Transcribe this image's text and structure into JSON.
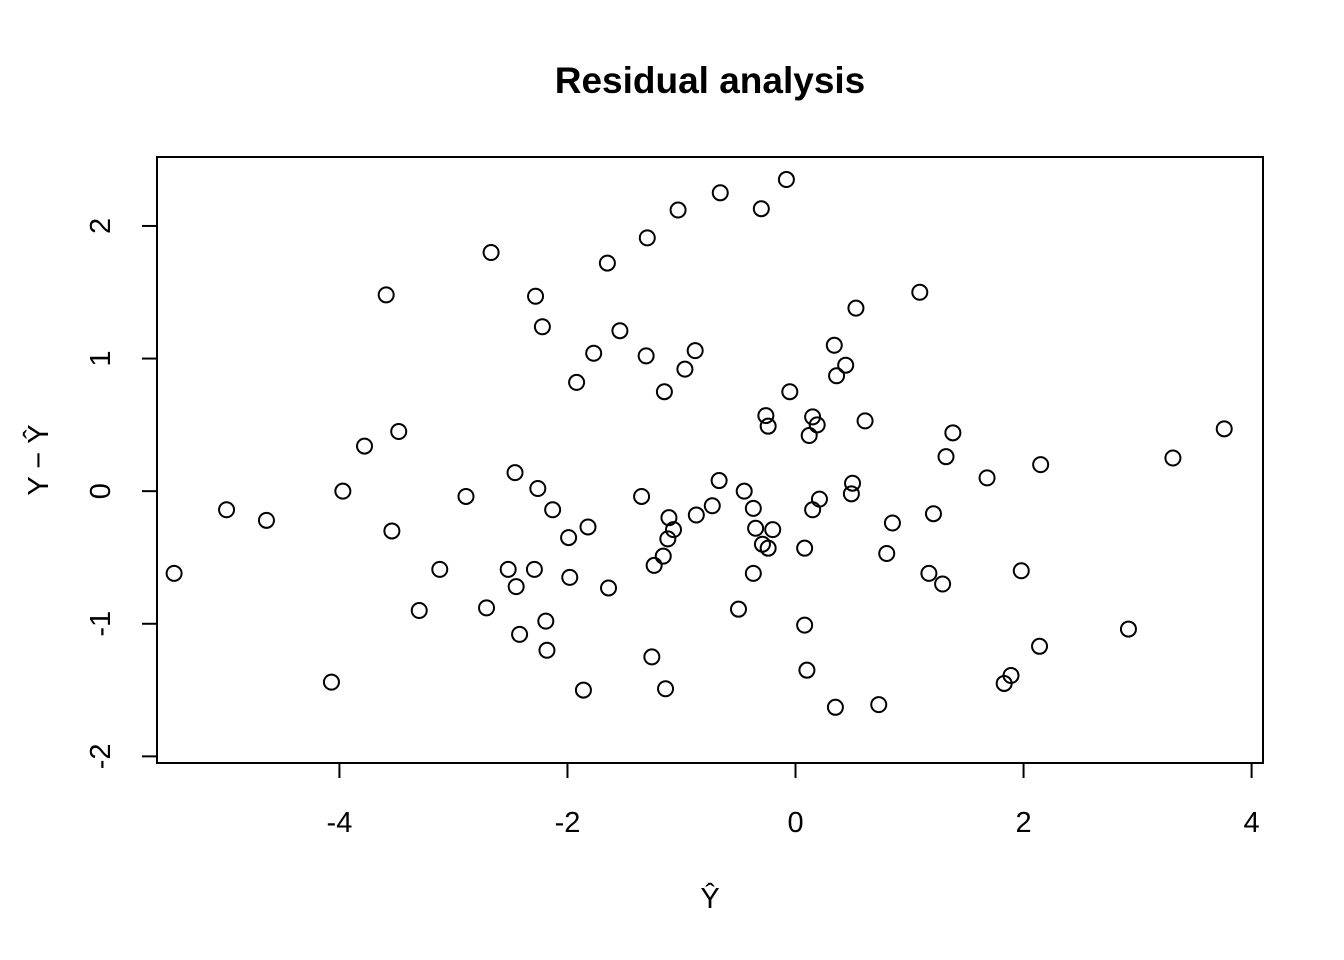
{
  "chart_data": {
    "type": "scatter",
    "title": "Residual analysis",
    "xlabel": "Ŷ",
    "ylabel": "Y − Ŷ",
    "xlim": [
      -5.6,
      4.1
    ],
    "ylim": [
      -2.05,
      2.52
    ],
    "xticks": [
      -4,
      -2,
      0,
      2,
      4
    ],
    "yticks": [
      -2,
      -1,
      0,
      1,
      2
    ],
    "grid": false,
    "point_color": "#000000",
    "points": [
      [
        -5.45,
        -0.62
      ],
      [
        -4.99,
        -0.14
      ],
      [
        -4.64,
        -0.22
      ],
      [
        -4.07,
        -1.44
      ],
      [
        -3.97,
        0.0
      ],
      [
        -3.78,
        0.34
      ],
      [
        -3.59,
        1.48
      ],
      [
        -3.54,
        -0.3
      ],
      [
        -3.48,
        0.45
      ],
      [
        -3.3,
        -0.9
      ],
      [
        -3.12,
        -0.59
      ],
      [
        -2.89,
        -0.04
      ],
      [
        -2.71,
        -0.88
      ],
      [
        -2.67,
        1.8
      ],
      [
        -2.52,
        -0.59
      ],
      [
        -2.46,
        0.14
      ],
      [
        -2.45,
        -0.72
      ],
      [
        -2.42,
        -1.08
      ],
      [
        -2.29,
        -0.59
      ],
      [
        -2.28,
        1.47
      ],
      [
        -2.26,
        0.02
      ],
      [
        -2.22,
        1.24
      ],
      [
        -2.19,
        -0.98
      ],
      [
        -2.18,
        -1.2
      ],
      [
        -2.13,
        -0.14
      ],
      [
        -1.99,
        -0.35
      ],
      [
        -1.98,
        -0.65
      ],
      [
        -1.92,
        0.82
      ],
      [
        -1.86,
        -1.5
      ],
      [
        -1.82,
        -0.27
      ],
      [
        -1.77,
        1.04
      ],
      [
        -1.65,
        1.72
      ],
      [
        -1.64,
        -0.73
      ],
      [
        -1.54,
        1.21
      ],
      [
        -1.35,
        -0.04
      ],
      [
        -1.31,
        1.02
      ],
      [
        -1.3,
        1.91
      ],
      [
        -1.26,
        -1.25
      ],
      [
        -1.24,
        -0.56
      ],
      [
        -1.16,
        -0.49
      ],
      [
        -1.15,
        0.75
      ],
      [
        -1.14,
        -1.49
      ],
      [
        -1.12,
        -0.36
      ],
      [
        -1.11,
        -0.2
      ],
      [
        -1.07,
        -0.29
      ],
      [
        -1.03,
        2.12
      ],
      [
        -0.97,
        0.92
      ],
      [
        -0.88,
        1.06
      ],
      [
        -0.87,
        -0.18
      ],
      [
        -0.73,
        -0.11
      ],
      [
        -0.67,
        0.08
      ],
      [
        -0.66,
        2.25
      ],
      [
        -0.5,
        -0.89
      ],
      [
        -0.45,
        0.0
      ],
      [
        -0.37,
        -0.13
      ],
      [
        -0.37,
        -0.62
      ],
      [
        -0.35,
        -0.28
      ],
      [
        -0.3,
        2.13
      ],
      [
        -0.29,
        -0.4
      ],
      [
        -0.26,
        0.57
      ],
      [
        -0.24,
        -0.43
      ],
      [
        -0.24,
        0.49
      ],
      [
        -0.2,
        -0.29
      ],
      [
        -0.08,
        2.35
      ],
      [
        -0.05,
        0.75
      ],
      [
        0.08,
        -0.43
      ],
      [
        0.08,
        -1.01
      ],
      [
        0.1,
        -1.35
      ],
      [
        0.12,
        0.42
      ],
      [
        0.15,
        0.56
      ],
      [
        0.15,
        -0.14
      ],
      [
        0.19,
        0.5
      ],
      [
        0.21,
        -0.06
      ],
      [
        0.34,
        1.1
      ],
      [
        0.35,
        -1.63
      ],
      [
        0.36,
        0.87
      ],
      [
        0.44,
        0.95
      ],
      [
        0.49,
        -0.02
      ],
      [
        0.5,
        0.06
      ],
      [
        0.53,
        1.38
      ],
      [
        0.61,
        0.53
      ],
      [
        0.73,
        -1.61
      ],
      [
        0.8,
        -0.47
      ],
      [
        0.85,
        -0.24
      ],
      [
        1.09,
        1.5
      ],
      [
        1.17,
        -0.62
      ],
      [
        1.21,
        -0.17
      ],
      [
        1.29,
        -0.7
      ],
      [
        1.32,
        0.26
      ],
      [
        1.38,
        0.44
      ],
      [
        1.68,
        0.1
      ],
      [
        1.83,
        -1.45
      ],
      [
        1.89,
        -1.39
      ],
      [
        1.98,
        -0.6
      ],
      [
        2.14,
        -1.17
      ],
      [
        2.15,
        0.2
      ],
      [
        2.92,
        -1.04
      ],
      [
        3.31,
        0.25
      ],
      [
        3.76,
        0.47
      ]
    ]
  }
}
